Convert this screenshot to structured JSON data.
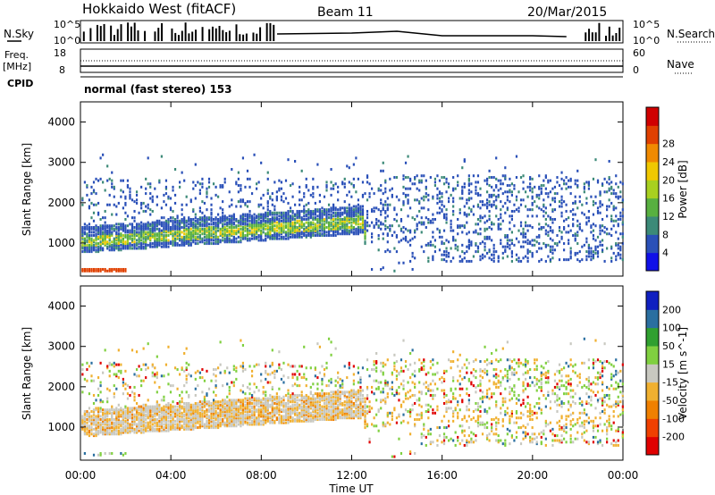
{
  "header": {
    "station": "Hokkaido West (fitACF)",
    "beam": "Beam 11",
    "date": "20/Mar/2015"
  },
  "nsky": {
    "label": "N.Sky",
    "tick_top": "10^5",
    "tick_bottom": "10^0",
    "right_label": "N.Search",
    "right_tick_top": "10^5",
    "right_tick_bottom": "10^0"
  },
  "freq": {
    "label_line1": "Freq.",
    "label_line2": "[MHz]",
    "tick_top": "18",
    "tick_bottom": "8",
    "right_label": "Nave",
    "right_tick_top": "60",
    "right_tick_bottom": "0"
  },
  "cpid": {
    "label": "CPID",
    "value": "normal (fast stereo) 153"
  },
  "x_axis": {
    "label": "Time UT",
    "ticks": [
      "00:00",
      "04:00",
      "08:00",
      "12:00",
      "16:00",
      "20:00",
      "00:00"
    ]
  },
  "chart_data": [
    {
      "type": "heatmap",
      "panel": "power",
      "ylabel": "Slant Range [km]",
      "yticks": [
        1000,
        2000,
        3000,
        4000
      ],
      "ylim": [
        180,
        4500
      ],
      "xlim": [
        0,
        24
      ],
      "colorbar": {
        "label": "Power [dB]",
        "ticks": [
          "4",
          "8",
          "12",
          "16",
          "20",
          "24",
          "28"
        ],
        "colors": [
          "#1010e8",
          "#2a50b8",
          "#3c8a78",
          "#58b040",
          "#a8d020",
          "#f0c800",
          "#f08a00",
          "#e04000",
          "#d00000"
        ]
      },
      "features": [
        {
          "name": "main band",
          "t_start": 0,
          "t_end": 12.5,
          "range_start_km": 850,
          "range_end_km": 1400
        },
        {
          "name": "near-range echoes",
          "t_start": 0,
          "t_end": 2,
          "range_km": 320
        },
        {
          "name": "scattered high-range echoes",
          "t_start": 12,
          "t_end": 24,
          "range_start_km": 600,
          "range_end_km": 2700
        }
      ]
    },
    {
      "type": "heatmap",
      "panel": "velocity",
      "ylabel": "Slant Range [km]",
      "yticks": [
        1000,
        2000,
        3000,
        4000
      ],
      "ylim": [
        180,
        4500
      ],
      "xlim": [
        0,
        24
      ],
      "colorbar": {
        "label": "Velocity [m s^-1]",
        "ticks": [
          "-200",
          "-100",
          "-50",
          "-15",
          "15",
          "50",
          "100",
          "200"
        ],
        "colors": [
          "#e00000",
          "#f04000",
          "#f08000",
          "#f0b030",
          "#c8c8c0",
          "#80d040",
          "#30a030",
          "#2a6fa0",
          "#1020c0"
        ]
      }
    }
  ]
}
